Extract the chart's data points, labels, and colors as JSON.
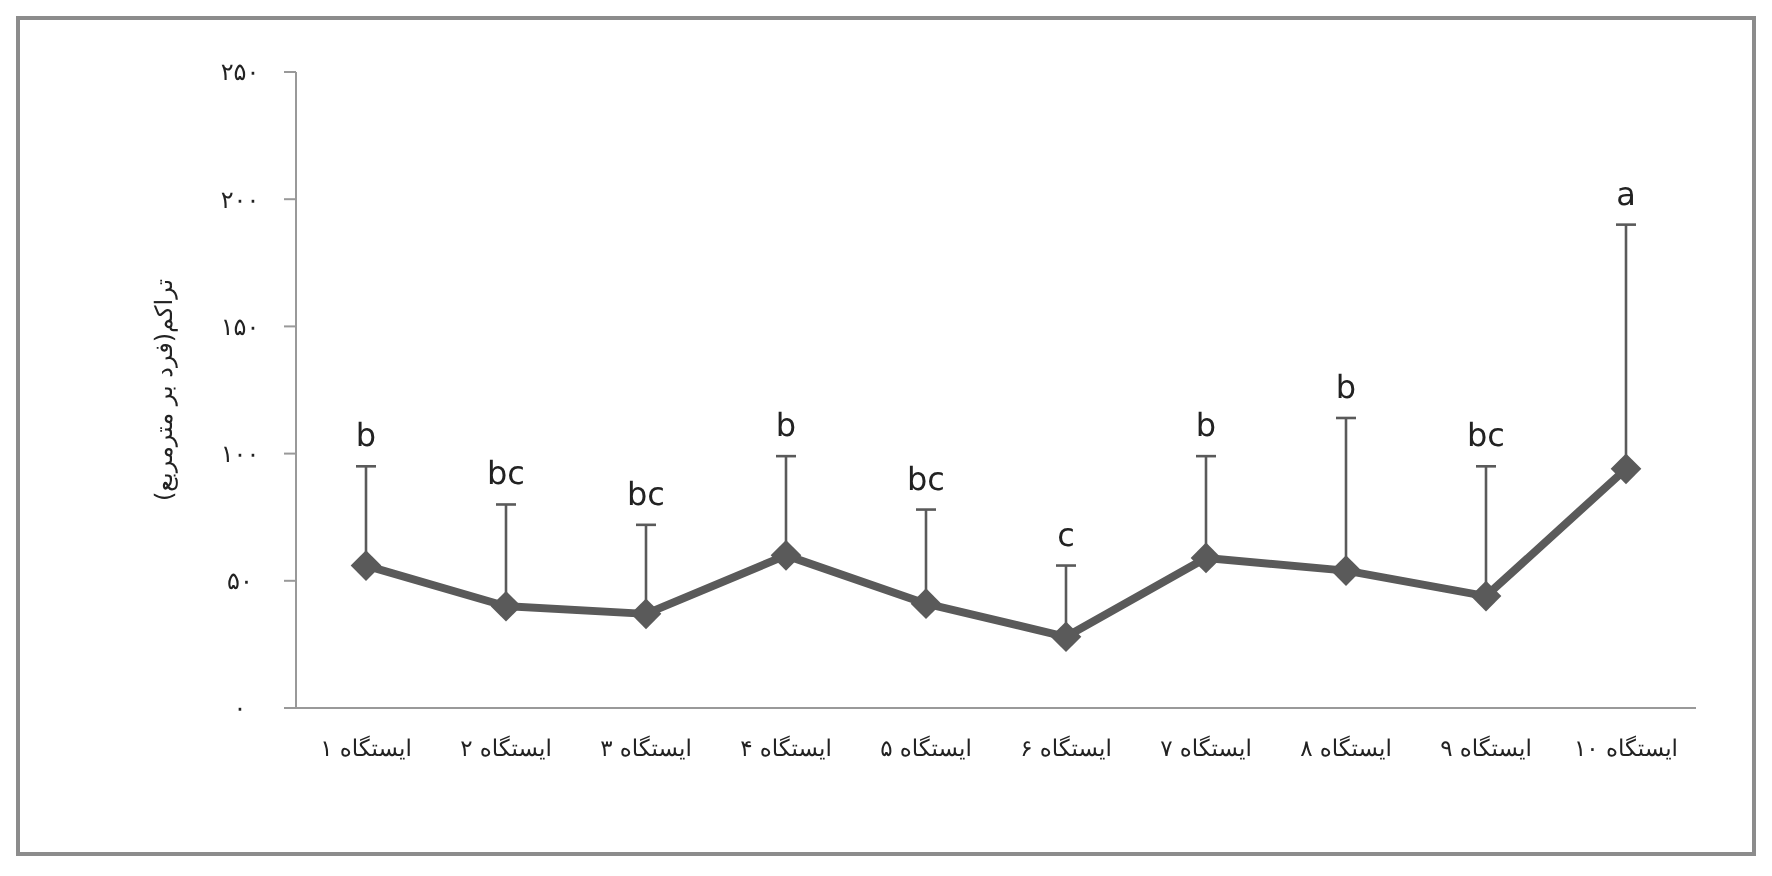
{
  "chart_data": {
    "type": "line",
    "ylabel": "تراکم(فرد بر مترمربع)",
    "categories": [
      "ایستگاه ۱",
      "ایستگاه ۲",
      "ایستگاه ۳",
      "ایستگاه ۴",
      "ایستگاه ۵",
      "ایستگاه ۶",
      "ایستگاه ۷",
      "ایستگاه ۸",
      "ایستگاه ۹",
      "ایستگاه ۱۰"
    ],
    "series": [
      {
        "color": "#5a5a5a",
        "values": [
          56,
          40,
          37,
          60,
          41,
          28,
          59,
          54,
          44,
          94
        ],
        "errors": [
          [
            56,
            95
          ],
          [
            40,
            80
          ],
          [
            37,
            72
          ],
          [
            60,
            99
          ],
          [
            41,
            78
          ],
          [
            28,
            56
          ],
          [
            59,
            99
          ],
          [
            54,
            114
          ],
          [
            44,
            95
          ],
          [
            94,
            190
          ]
        ]
      }
    ],
    "ylim": [
      0,
      250
    ],
    "yticks": [
      {
        "value": 0,
        "label": "۰"
      },
      {
        "value": 50,
        "label": "۵۰"
      },
      {
        "value": 100,
        "label": "۱۰۰"
      },
      {
        "value": 150,
        "label": "۱۵۰"
      },
      {
        "value": 200,
        "label": "۲۰۰"
      },
      {
        "value": 250,
        "label": "۲۵۰"
      }
    ],
    "marker": "diamond",
    "line_style": "solid",
    "grid": false,
    "annotations": [
      {
        "text": "b",
        "x": "ایستگاه ۱",
        "y": 95
      },
      {
        "text": "bc",
        "x": "ایستگاه ۲",
        "y": 80
      },
      {
        "text": "bc",
        "x": "ایستگاه ۳",
        "y": 72
      },
      {
        "text": "b",
        "x": "ایستگاه ۴",
        "y": 99
      },
      {
        "text": "bc",
        "x": "ایستگاه ۵",
        "y": 78
      },
      {
        "text": "c",
        "x": "ایستگاه ۶",
        "y": 56
      },
      {
        "text": "b",
        "x": "ایستگاه ۷",
        "y": 99
      },
      {
        "text": "b",
        "x": "ایستگاه ۸",
        "y": 114
      },
      {
        "text": "bc",
        "x": "ایستگاه ۹",
        "y": 95
      },
      {
        "text": "a",
        "x": "ایستگاه ۱۰",
        "y": 190
      }
    ]
  }
}
